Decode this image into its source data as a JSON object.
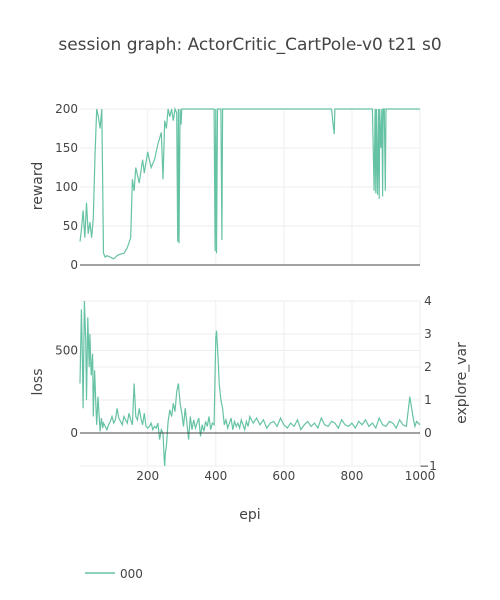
{
  "chart_data": {
    "type": "line",
    "title": "session graph: ActorCritic_CartPole-v0 t21 s0",
    "xlabel": "epi",
    "x_range": [
      1,
      1000
    ],
    "x_ticks": [
      200,
      400,
      600,
      800,
      1000
    ],
    "x_tick_labels": [
      "200",
      "400",
      "600",
      "800",
      "1000"
    ],
    "grid": true,
    "legend_position": "bottom-left",
    "colors": {
      "series": "#66c2a5",
      "grid": "#eeeeee",
      "zeroline": "#444444",
      "text": "#444444"
    },
    "legend": [
      {
        "name": "000",
        "color": "#66c2a5"
      }
    ],
    "panels": [
      {
        "id": "top",
        "ylabel": "reward",
        "ylim": [
          0,
          200
        ],
        "yticks": [
          0,
          50,
          100,
          150,
          200
        ],
        "y_tick_labels": [
          "0",
          "50",
          "100",
          "150",
          "200"
        ],
        "series": [
          {
            "name": "000",
            "x": [
              1,
              5,
              10,
              15,
              20,
              25,
              30,
              35,
              40,
              45,
              50,
              55,
              60,
              65,
              70,
              75,
              80,
              90,
              100,
              110,
              120,
              130,
              140,
              150,
              155,
              160,
              165,
              170,
              175,
              180,
              185,
              190,
              200,
              210,
              220,
              230,
              240,
              245,
              250,
              255,
              260,
              265,
              270,
              275,
              280,
              285,
              288,
              290,
              292,
              295,
              298,
              300,
              305,
              310,
              320,
              340,
              360,
              380,
              395,
              398,
              400,
              402,
              405,
              410,
              415,
              418,
              420,
              425,
              430,
              450,
              500,
              550,
              600,
              650,
              700,
              740,
              748,
              750,
              752,
              760,
              800,
              850,
              860,
              865,
              868,
              870,
              872,
              875,
              878,
              880,
              882,
              885,
              888,
              890,
              892,
              895,
              898,
              900,
              905,
              910,
              950,
              1000
            ],
            "y": [
              30,
              45,
              70,
              35,
              80,
              40,
              55,
              35,
              60,
              140,
              200,
              190,
              175,
              200,
              15,
              10,
              12,
              10,
              8,
              12,
              14,
              15,
              22,
              35,
              110,
              95,
              125,
              115,
              105,
              120,
              135,
              118,
              145,
              125,
              135,
              155,
              170,
              110,
              185,
              175,
              200,
              190,
              200,
              185,
              200,
              195,
              30,
              200,
              28,
              200,
              180,
              200,
              200,
              200,
              200,
              200,
              200,
              200,
              200,
              18,
              200,
              15,
              200,
              200,
              200,
              32,
              200,
              200,
              200,
              200,
              200,
              200,
              200,
              200,
              200,
              200,
              168,
              200,
              200,
              200,
              200,
              200,
              200,
              95,
              200,
              92,
              200,
              90,
              200,
              85,
              200,
              150,
              200,
              88,
              200,
              200,
              95,
              200,
              200,
              200,
              200,
              200
            ]
          }
        ]
      },
      {
        "id": "bottom",
        "ylabel": "loss",
        "ylim": [
          -200,
          800
        ],
        "yticks": [
          0,
          500
        ],
        "y_tick_labels": [
          "0",
          "500"
        ],
        "y2label": "explore_var",
        "y2lim": [
          -1,
          4
        ],
        "y2ticks": [
          -1,
          0,
          1,
          2,
          3,
          4
        ],
        "y2_tick_labels": [
          "−1",
          "0",
          "1",
          "2",
          "3",
          "4"
        ],
        "series": [
          {
            "name": "000",
            "x": [
              1,
              5,
              8,
              10,
              14,
              18,
              20,
              24,
              28,
              30,
              34,
              38,
              40,
              44,
              48,
              50,
              54,
              58,
              60,
              64,
              68,
              70,
              75,
              80,
              85,
              90,
              95,
              100,
              105,
              110,
              115,
              120,
              125,
              130,
              135,
              140,
              145,
              150,
              155,
              160,
              165,
              170,
              175,
              180,
              185,
              190,
              195,
              200,
              205,
              210,
              215,
              220,
              225,
              230,
              235,
              240,
              245,
              248,
              250,
              252,
              255,
              260,
              265,
              270,
              275,
              280,
              285,
              290,
              295,
              300,
              305,
              310,
              315,
              320,
              325,
              330,
              335,
              340,
              345,
              350,
              355,
              360,
              365,
              370,
              375,
              380,
              385,
              390,
              395,
              400,
              402,
              405,
              408,
              410,
              415,
              420,
              425,
              430,
              435,
              440,
              445,
              450,
              455,
              460,
              465,
              470,
              475,
              480,
              485,
              490,
              495,
              500,
              510,
              520,
              530,
              540,
              550,
              560,
              570,
              580,
              590,
              600,
              610,
              620,
              630,
              640,
              650,
              660,
              670,
              680,
              690,
              700,
              710,
              720,
              730,
              740,
              750,
              760,
              770,
              780,
              790,
              800,
              810,
              820,
              830,
              840,
              850,
              860,
              870,
              880,
              890,
              900,
              910,
              920,
              930,
              940,
              950,
              960,
              970,
              980,
              985,
              990,
              995,
              1000
            ],
            "y": [
              300,
              750,
              450,
              150,
              800,
              550,
              200,
              700,
              400,
              600,
              350,
              480,
              100,
              380,
              150,
              50,
              220,
              80,
              10,
              90,
              30,
              60,
              40,
              20,
              50,
              70,
              100,
              60,
              80,
              150,
              90,
              70,
              50,
              100,
              80,
              60,
              120,
              80,
              50,
              300,
              100,
              80,
              150,
              90,
              50,
              120,
              40,
              30,
              40,
              60,
              20,
              40,
              30,
              60,
              -40,
              20,
              0,
              -150,
              -200,
              -120,
              -80,
              70,
              140,
              100,
              180,
              130,
              250,
              300,
              180,
              120,
              40,
              150,
              60,
              -40,
              100,
              20,
              80,
              30,
              60,
              90,
              -20,
              50,
              10,
              70,
              40,
              100,
              20,
              60,
              50,
              580,
              620,
              520,
              400,
              300,
              200,
              150,
              50,
              80,
              30,
              60,
              90,
              20,
              70,
              40,
              60,
              30,
              80,
              50,
              20,
              70,
              40,
              100,
              60,
              90,
              50,
              80,
              30,
              60,
              70,
              40,
              90,
              50,
              30,
              60,
              40,
              80,
              20,
              50,
              70,
              40,
              60,
              30,
              90,
              50,
              40,
              70,
              60,
              30,
              80,
              50,
              40,
              60,
              30,
              70,
              50,
              80,
              40,
              60,
              30,
              90,
              50,
              40,
              70,
              60,
              30,
              80,
              50,
              40,
              220,
              90,
              40,
              70,
              60,
              50
            ]
          }
        ]
      }
    ]
  }
}
